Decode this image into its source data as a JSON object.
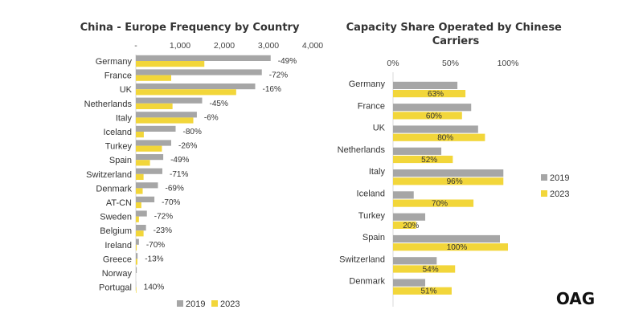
{
  "chart_data": [
    {
      "type": "bar",
      "orientation": "horizontal",
      "title": "China - Europe Frequency by Country",
      "categories": [
        "Germany",
        "France",
        "UK",
        "Netherlands",
        "Italy",
        "Iceland",
        "Turkey",
        "Spain",
        "Switzerland",
        "Denmark",
        "AT-CN",
        "Sweden",
        "Belgium",
        "Ireland",
        "Greece",
        "Norway",
        "Portugal"
      ],
      "series": [
        {
          "name": "2019",
          "color": "#a6a6a6",
          "values": [
            3050,
            2850,
            2700,
            1500,
            1380,
            900,
            800,
            620,
            600,
            500,
            420,
            250,
            230,
            70,
            40,
            20,
            5
          ]
        },
        {
          "name": "2023",
          "color": "#f2d63a",
          "values": [
            1550,
            800,
            2270,
            830,
            1300,
            180,
            590,
            320,
            175,
            155,
            125,
            70,
            175,
            20,
            35,
            0,
            12
          ]
        }
      ],
      "changes": [
        "-49%",
        "-72%",
        "-16%",
        "-45%",
        "-6%",
        "-80%",
        "-26%",
        "-49%",
        "-71%",
        "-69%",
        "-70%",
        "-72%",
        "-23%",
        "-70%",
        "-13%",
        "",
        "140%"
      ],
      "xticks": [
        "-",
        "1,000",
        "2,000",
        "3,000",
        "4,000"
      ],
      "xlim": [
        0,
        4000
      ],
      "legend": [
        "2019",
        "2023"
      ],
      "legend_position": "bottom"
    },
    {
      "type": "bar",
      "orientation": "horizontal",
      "title": "Capacity Share Operated by Chinese Carriers",
      "categories": [
        "Germany",
        "France",
        "UK",
        "Netherlands",
        "Italy",
        "Iceland",
        "Turkey",
        "Spain",
        "Switzerland",
        "Denmark"
      ],
      "series": [
        {
          "name": "2019",
          "color": "#a6a6a6",
          "values": [
            56,
            68,
            74,
            42,
            96,
            18,
            28,
            93,
            38,
            28
          ]
        },
        {
          "name": "2023",
          "color": "#f2d63a",
          "values": [
            63,
            60,
            80,
            52,
            96,
            70,
            20,
            100,
            54,
            51
          ]
        }
      ],
      "data_labels_2023": [
        "63%",
        "60%",
        "80%",
        "52%",
        "96%",
        "70%",
        "20%",
        "100%",
        "54%",
        "51%"
      ],
      "xticks": [
        "0%",
        "50%",
        "100%"
      ],
      "xlim": [
        0,
        100
      ],
      "legend": [
        "2019",
        "2023"
      ],
      "legend_position": "right"
    }
  ],
  "brand": {
    "logo": "OAG"
  },
  "colors": {
    "series_2019": "#a6a6a6",
    "series_2023": "#f2d63a",
    "axis": "#d9d9d9"
  }
}
